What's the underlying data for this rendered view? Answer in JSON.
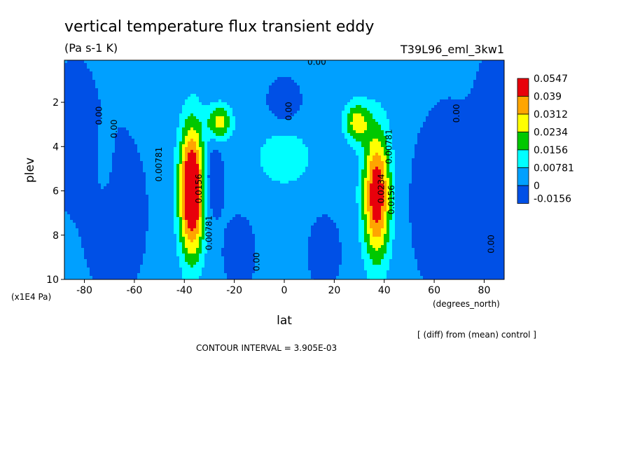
{
  "chart_data": {
    "type": "heatmap",
    "title": "vertical temperature flux transient eddy",
    "units": "(Pa s-1 K)",
    "run_label": "T39L96_eml_3kw1",
    "xlabel": "lat",
    "x_units": "(degrees_north)",
    "ylabel": "plev",
    "y_units": "(x1E4 Pa)",
    "xlim": [
      -88,
      88
    ],
    "ylim": [
      10,
      0.1
    ],
    "x_ticks": [
      -80,
      -60,
      -40,
      -20,
      0,
      20,
      40,
      60,
      80
    ],
    "x_tick_labels": [
      "-80",
      "-60",
      "-40",
      "-20",
      "0",
      "20",
      "40",
      "60",
      "80"
    ],
    "y_ticks": [
      2,
      4,
      6,
      8,
      10
    ],
    "y_tick_labels": [
      "2",
      "4",
      "6",
      "8",
      "10"
    ],
    "legend": {
      "placement": "right",
      "levels": [
        "0.0547",
        "0.039",
        "0.0312",
        "0.0234",
        "0.0156",
        "0.00781",
        "0",
        "-0.0156"
      ],
      "colors": [
        "#e8000b",
        "#ffa500",
        "#ffff00",
        "#00c800",
        "#00ffff",
        "#00a0ff",
        "#0050e6"
      ]
    },
    "contour_interval_text": "CONTOUR INTERVAL = 3.905E-03",
    "footnote": "[ (diff) from (mean) control ]",
    "contour_labels": [
      {
        "text": "0.00",
        "lat": 13,
        "plev": 0.3
      },
      {
        "text": "0.00",
        "lat": -73,
        "plev": 2.6
      },
      {
        "text": "0.00",
        "lat": -67,
        "plev": 3.2
      },
      {
        "text": "0.00",
        "lat": 3,
        "plev": 2.4
      },
      {
        "text": "0.00",
        "lat": 70,
        "plev": 2.5
      },
      {
        "text": "0.00781",
        "lat": -49,
        "plev": 4.8
      },
      {
        "text": "0.00781",
        "lat": 43,
        "plev": 4.0
      },
      {
        "text": "0.0156",
        "lat": -33,
        "plev": 5.9
      },
      {
        "text": "0.0234",
        "lat": 40,
        "plev": 5.9
      },
      {
        "text": "0.0156",
        "lat": 44,
        "plev": 6.4
      },
      {
        "text": "0.00781",
        "lat": -29,
        "plev": 7.9
      },
      {
        "text": "0.00",
        "lat": -10,
        "plev": 9.2
      },
      {
        "text": "0.00",
        "lat": 84,
        "plev": 8.4
      }
    ],
    "features": [
      {
        "lat": -37,
        "plev": 6.0,
        "dlat": 5,
        "dplev": 2.9,
        "value": 0.056
      },
      {
        "lat": 37,
        "plev": 6.2,
        "dlat": 5.5,
        "dplev": 2.9,
        "value": 0.045
      },
      {
        "lat": -26,
        "plev": 2.9,
        "dlat": 5,
        "dplev": 0.8,
        "value": 0.025
      },
      {
        "lat": 29,
        "plev": 2.9,
        "dlat": 5,
        "dplev": 0.9,
        "value": 0.025
      },
      {
        "lat": 0,
        "plev": 4.5,
        "dlat": 14,
        "dplev": 1.6,
        "value": 0.0095
      },
      {
        "lat": -72,
        "plev": 5.0,
        "dlat": 4,
        "dplev": 1.8,
        "value": 0.0095
      },
      {
        "lat": -29,
        "plev": 5.5,
        "dlat": 4,
        "dplev": 1.6,
        "value": -0.012
      },
      {
        "lat": -84,
        "plev": 3.5,
        "dlat": 8,
        "dplev": 2.5,
        "value": -0.014
      },
      {
        "lat": 84,
        "plev": 5.0,
        "dlat": 7,
        "dplev": 4.0,
        "value": -0.014
      },
      {
        "lat": -68,
        "plev": 7.0,
        "dlat": 10,
        "dplev": 3.0,
        "value": -0.012
      },
      {
        "lat": 66,
        "plev": 6.5,
        "dlat": 12,
        "dplev": 3.5,
        "value": -0.012
      },
      {
        "lat": -18,
        "plev": 8.8,
        "dlat": 5,
        "dplev": 1.3,
        "value": -0.012
      },
      {
        "lat": 16,
        "plev": 8.8,
        "dlat": 5,
        "dplev": 1.3,
        "value": -0.012
      },
      {
        "lat": 0,
        "plev": 2.0,
        "dlat": 6,
        "dplev": 0.9,
        "value": -0.01
      }
    ],
    "background_value": 0.002
  }
}
